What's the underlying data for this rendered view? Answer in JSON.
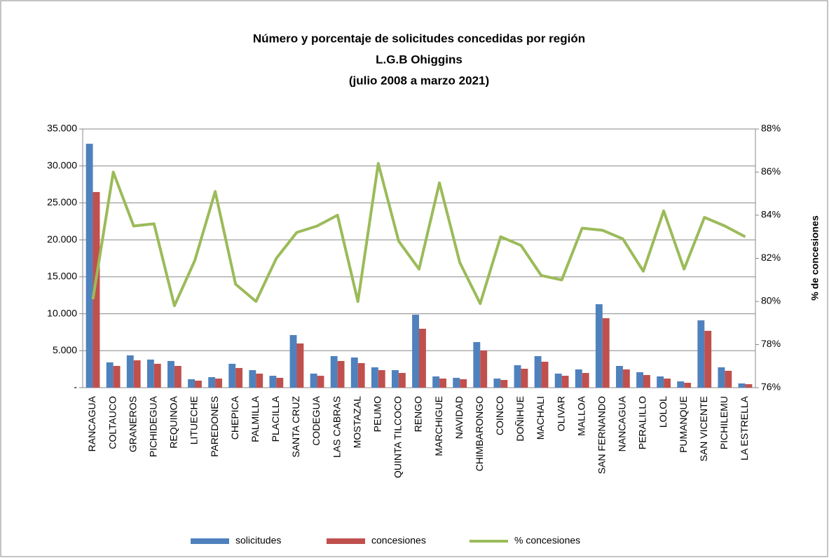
{
  "chart_data": {
    "type": "bar_line",
    "title": [
      "Número y porcentaje de solicitudes concedidas por región",
      "L.G.B Ohiggins",
      "(julio 2008 a marzo 2021)"
    ],
    "y2_label": "% de concesiones",
    "categories": [
      "RANCAGUA",
      "COLTAUCO",
      "GRANEROS",
      "PICHIDEGUA",
      "REQUINOA",
      "LITUECHE",
      "PAREDONES",
      "CHEPICA",
      "PALMILLA",
      "PLACILLA",
      "SANTA CRUZ",
      "CODEGUA",
      "LAS CABRAS",
      "MOSTAZAL",
      "PEUMO",
      "QUINTA TILCOCO",
      "RENGO",
      "MARCHIGUE",
      "NAVIDAD",
      "CHIMBARONGO",
      "COINCO",
      "DOÑIHUE",
      "MACHALI",
      "OLIVAR",
      "MALLOA",
      "SAN FERNANDO",
      "NANCAGUA",
      "PERALILLO",
      "LOLOL",
      "PUMANQUE",
      "SAN VICENTE",
      "PICHILEMU",
      "LA ESTRELLA"
    ],
    "series": [
      {
        "name": "solicitudes",
        "type": "bar",
        "color": "#4f81bd",
        "values": [
          33000,
          3420,
          4370,
          3800,
          3610,
          1140,
          1420,
          3230,
          2370,
          1610,
          7120,
          1900,
          4270,
          4080,
          2750,
          2370,
          9870,
          1520,
          1330,
          6170,
          1230,
          3040,
          4270,
          1900,
          2470,
          11290,
          2940,
          2090,
          1520,
          850,
          9110,
          2750,
          570
        ]
      },
      {
        "name": "concesiones",
        "type": "bar",
        "color": "#c0504d",
        "values": [
          26470,
          2940,
          3700,
          3230,
          2940,
          950,
          1230,
          2660,
          1900,
          1330,
          5980,
          1610,
          3610,
          3320,
          2370,
          1990,
          7970,
          1230,
          1140,
          5030,
          1040,
          2560,
          3510,
          1610,
          1990,
          9400,
          2470,
          1710,
          1230,
          660,
          7690,
          2280,
          470
        ]
      },
      {
        "name": "% concesiones",
        "type": "line",
        "axis": "y2",
        "color": "#9bbb59",
        "values": [
          80.1,
          86.0,
          83.5,
          83.6,
          79.8,
          81.9,
          85.1,
          80.8,
          80.0,
          82.0,
          83.2,
          83.5,
          84.0,
          80.0,
          86.4,
          82.8,
          81.5,
          85.5,
          81.8,
          79.9,
          83.0,
          82.6,
          81.2,
          81.0,
          83.4,
          83.3,
          82.9,
          81.4,
          84.2,
          81.5,
          83.9,
          83.5,
          83.0
        ]
      }
    ],
    "ylim": [
      0,
      35000
    ],
    "yticks": [
      {
        "value": 0,
        "label": "-"
      },
      {
        "value": 5000,
        "label": "5.000"
      },
      {
        "value": 10000,
        "label": "10.000"
      },
      {
        "value": 15000,
        "label": "15.000"
      },
      {
        "value": 20000,
        "label": "20.000"
      },
      {
        "value": 25000,
        "label": "25.000"
      },
      {
        "value": 30000,
        "label": "30.000"
      },
      {
        "value": 35000,
        "label": "35.000"
      }
    ],
    "y2lim": [
      76,
      88
    ],
    "y2ticks": [
      {
        "value": 76,
        "label": "76%"
      },
      {
        "value": 78,
        "label": "78%"
      },
      {
        "value": 80,
        "label": "80%"
      },
      {
        "value": 82,
        "label": "82%"
      },
      {
        "value": 84,
        "label": "84%"
      },
      {
        "value": 86,
        "label": "86%"
      },
      {
        "value": 88,
        "label": "88%"
      }
    ],
    "grid": true,
    "legend": "bottom"
  }
}
